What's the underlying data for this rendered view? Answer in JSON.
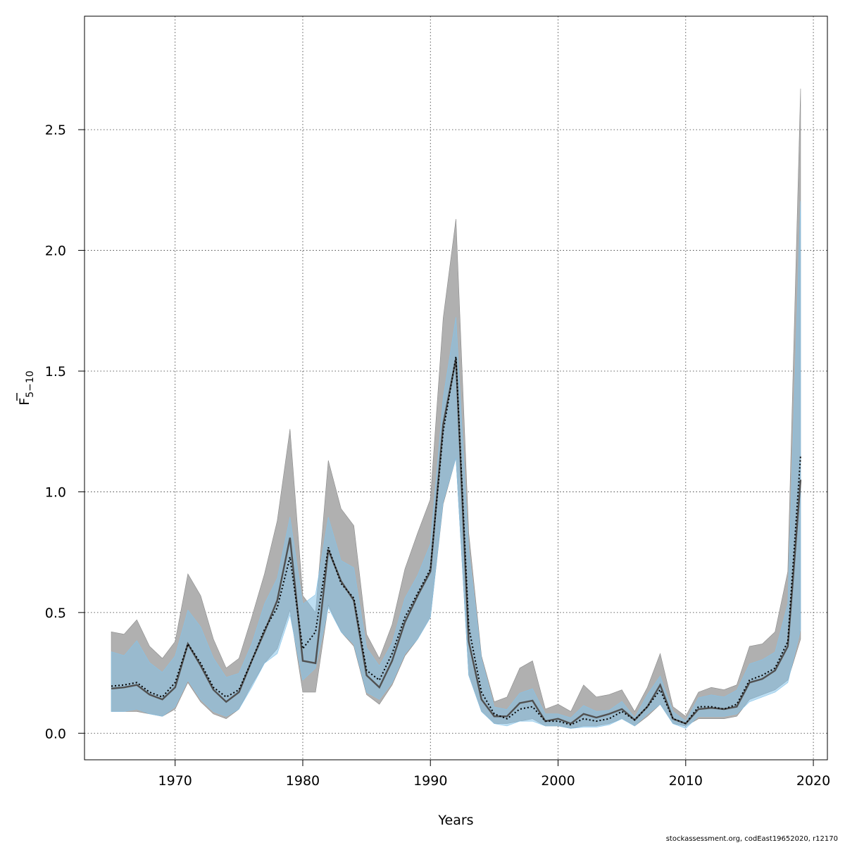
{
  "chart_data": {
    "type": "line",
    "xlabel": "Years",
    "ylabel_base": "F",
    "ylabel_sub": "5−10",
    "xlim": [
      1962.9,
      2021.1
    ],
    "ylim": [
      -0.11,
      2.97
    ],
    "xticks": [
      1970,
      1980,
      1990,
      2000,
      2010,
      2020
    ],
    "yticks": [
      0.0,
      0.5,
      1.0,
      1.5,
      2.0,
      2.5
    ],
    "ytick_labels": [
      "0.0",
      "0.5",
      "1.0",
      "1.5",
      "2.0",
      "2.5"
    ],
    "grid": true,
    "colors": {
      "band_a": "#b0b0b0",
      "band_b": "#87c3e8",
      "overlap": "#a3c4d6",
      "line_a": "#505050",
      "line_b": "#000000"
    },
    "x": [
      1965,
      1966,
      1967,
      1968,
      1969,
      1970,
      1971,
      1972,
      1973,
      1974,
      1975,
      1976,
      1977,
      1978,
      1979,
      1980,
      1981,
      1982,
      1983,
      1984,
      1985,
      1986,
      1987,
      1988,
      1989,
      1990,
      1991,
      1992,
      1993,
      1994,
      1995,
      1996,
      1997,
      1998,
      1999,
      2000,
      2001,
      2002,
      2003,
      2004,
      2005,
      2006,
      2007,
      2008,
      2009,
      2010,
      2011,
      2012,
      2013,
      2014,
      2015,
      2016,
      2017,
      2018,
      2019
    ],
    "series": [
      {
        "style": "solid",
        "values": [
          0.185,
          0.19,
          0.2,
          0.16,
          0.14,
          0.19,
          0.37,
          0.28,
          0.18,
          0.13,
          0.17,
          0.3,
          0.42,
          0.55,
          0.81,
          0.3,
          0.29,
          0.76,
          0.63,
          0.55,
          0.24,
          0.19,
          0.3,
          0.46,
          0.57,
          0.67,
          1.28,
          1.55,
          0.38,
          0.14,
          0.07,
          0.07,
          0.125,
          0.135,
          0.05,
          0.06,
          0.04,
          0.08,
          0.065,
          0.08,
          0.1,
          0.055,
          0.11,
          0.2,
          0.06,
          0.04,
          0.1,
          0.105,
          0.1,
          0.11,
          0.21,
          0.225,
          0.26,
          0.36,
          1.05
        ],
        "lower": [
          0.09,
          0.09,
          0.09,
          0.08,
          0.07,
          0.1,
          0.21,
          0.13,
          0.08,
          0.06,
          0.1,
          0.2,
          0.29,
          0.35,
          0.51,
          0.17,
          0.17,
          0.53,
          0.42,
          0.36,
          0.16,
          0.12,
          0.2,
          0.32,
          0.39,
          0.48,
          0.95,
          1.14,
          0.24,
          0.09,
          0.04,
          0.04,
          0.05,
          0.06,
          0.03,
          0.03,
          0.02,
          0.03,
          0.03,
          0.04,
          0.06,
          0.03,
          0.07,
          0.12,
          0.04,
          0.03,
          0.06,
          0.06,
          0.06,
          0.07,
          0.14,
          0.16,
          0.18,
          0.22,
          0.39
        ],
        "upper": [
          0.42,
          0.41,
          0.47,
          0.36,
          0.31,
          0.38,
          0.66,
          0.57,
          0.39,
          0.27,
          0.31,
          0.48,
          0.66,
          0.88,
          1.26,
          0.57,
          0.5,
          1.13,
          0.93,
          0.86,
          0.41,
          0.31,
          0.45,
          0.68,
          0.83,
          0.97,
          1.72,
          2.13,
          0.83,
          0.32,
          0.13,
          0.15,
          0.27,
          0.3,
          0.1,
          0.12,
          0.09,
          0.2,
          0.15,
          0.16,
          0.18,
          0.09,
          0.19,
          0.33,
          0.11,
          0.07,
          0.17,
          0.19,
          0.18,
          0.2,
          0.36,
          0.37,
          0.42,
          0.67,
          2.67
        ]
      },
      {
        "style": "dotted",
        "values": [
          0.195,
          0.2,
          0.21,
          0.17,
          0.15,
          0.21,
          0.37,
          0.29,
          0.19,
          0.15,
          0.18,
          0.3,
          0.43,
          0.52,
          0.73,
          0.35,
          0.42,
          0.77,
          0.62,
          0.56,
          0.26,
          0.22,
          0.33,
          0.48,
          0.58,
          0.68,
          1.25,
          1.56,
          0.44,
          0.17,
          0.08,
          0.06,
          0.1,
          0.11,
          0.05,
          0.05,
          0.035,
          0.06,
          0.05,
          0.06,
          0.09,
          0.055,
          0.11,
          0.18,
          0.06,
          0.04,
          0.11,
          0.11,
          0.1,
          0.12,
          0.22,
          0.24,
          0.27,
          0.38,
          1.15
        ],
        "lower": [
          0.09,
          0.09,
          0.1,
          0.08,
          0.07,
          0.11,
          0.22,
          0.14,
          0.09,
          0.07,
          0.1,
          0.19,
          0.29,
          0.33,
          0.49,
          0.22,
          0.27,
          0.52,
          0.42,
          0.37,
          0.17,
          0.14,
          0.21,
          0.33,
          0.39,
          0.48,
          0.96,
          1.14,
          0.24,
          0.09,
          0.04,
          0.03,
          0.05,
          0.05,
          0.03,
          0.03,
          0.02,
          0.025,
          0.025,
          0.035,
          0.06,
          0.03,
          0.08,
          0.12,
          0.04,
          0.02,
          0.07,
          0.07,
          0.07,
          0.08,
          0.13,
          0.15,
          0.17,
          0.21,
          0.43
        ]
      }
    ]
  },
  "credit": "stockassessment.org, codEast19652020, r12170"
}
